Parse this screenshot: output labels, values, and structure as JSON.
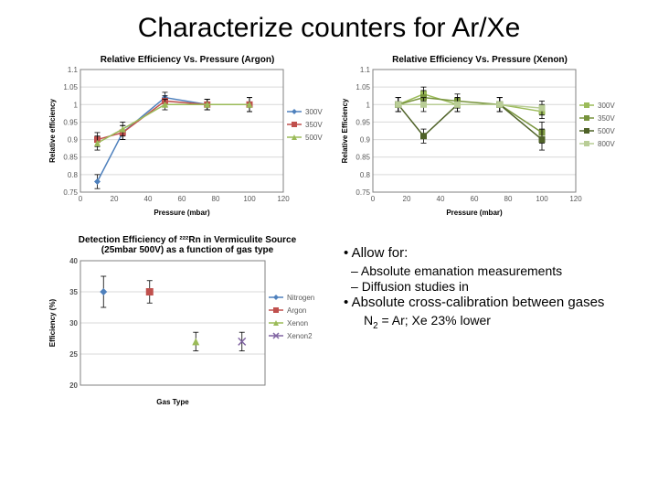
{
  "title": "Characterize counters for Ar/Xe",
  "chart_argon": {
    "title": "Relative Efficiency Vs. Pressure (Argon)",
    "xlabel": "Pressure (mbar)",
    "ylabel": "Relative efficiency",
    "xlim": [
      0,
      120
    ],
    "xtick_step": 20,
    "ylim": [
      0.75,
      1.1
    ],
    "yticks": [
      0.75,
      0.8,
      0.85,
      0.9,
      0.95,
      1.0,
      1.05,
      1.1
    ],
    "series_colors": {
      "300V": "#4f81bd",
      "350V": "#c0504d",
      "500V": "#9bbb59"
    },
    "marker_shape": {
      "300V": "diamond",
      "350V": "square",
      "500V": "triangle"
    },
    "series": {
      "300V": [
        {
          "x": 10,
          "y": 0.78,
          "e": 0.02
        },
        {
          "x": 25,
          "y": 0.92,
          "e": 0.02
        },
        {
          "x": 50,
          "y": 1.02,
          "e": 0.015
        },
        {
          "x": 75,
          "y": 1.0,
          "e": 0.015
        },
        {
          "x": 100,
          "y": 1.0,
          "e": 0.02
        }
      ],
      "350V": [
        {
          "x": 10,
          "y": 0.9,
          "e": 0.02
        },
        {
          "x": 25,
          "y": 0.92,
          "e": 0.02
        },
        {
          "x": 50,
          "y": 1.01,
          "e": 0.015
        },
        {
          "x": 75,
          "y": 1.0,
          "e": 0.015
        },
        {
          "x": 100,
          "y": 1.0,
          "e": 0.02
        }
      ],
      "500V": [
        {
          "x": 10,
          "y": 0.89,
          "e": 0.02
        },
        {
          "x": 25,
          "y": 0.93,
          "e": 0.02
        },
        {
          "x": 50,
          "y": 1.0,
          "e": 0.015
        },
        {
          "x": 75,
          "y": 1.0,
          "e": 0.015
        },
        {
          "x": 100,
          "y": 1.0,
          "e": 0.02
        }
      ]
    },
    "grid_color": "#d9d9d9",
    "axis_color": "#808080",
    "background": "#ffffff"
  },
  "chart_xenon": {
    "title": "Relative Efficiency Vs. Pressure (Xenon)",
    "xlabel": "Pressure (mbar)",
    "ylabel": "Relative Efficiency",
    "xlim": [
      0,
      120
    ],
    "xtick_step": 20,
    "ylim": [
      0.75,
      1.1
    ],
    "yticks": [
      0.75,
      0.8,
      0.85,
      0.9,
      0.95,
      1.0,
      1.05,
      1.1
    ],
    "series_colors": {
      "300V": "#9bbb59",
      "350V": "#77933c",
      "500V": "#4f6228",
      "800V": "#b9cd96"
    },
    "marker_shape": {
      "300V": "square",
      "350V": "square",
      "500V": "square",
      "800V": "square"
    },
    "series": {
      "300V": [
        {
          "x": 15,
          "y": 1.0,
          "e": 0.02
        },
        {
          "x": 30,
          "y": 1.03,
          "e": 0.02
        },
        {
          "x": 50,
          "y": 1.0,
          "e": 0.02
        },
        {
          "x": 75,
          "y": 1.0,
          "e": 0.02
        },
        {
          "x": 100,
          "y": 0.98,
          "e": 0.02
        }
      ],
      "350V": [
        {
          "x": 15,
          "y": 1.0,
          "e": 0.02
        },
        {
          "x": 30,
          "y": 1.02,
          "e": 0.02
        },
        {
          "x": 50,
          "y": 1.01,
          "e": 0.02
        },
        {
          "x": 75,
          "y": 1.0,
          "e": 0.02
        },
        {
          "x": 100,
          "y": 0.92,
          "e": 0.03
        }
      ],
      "500V": [
        {
          "x": 15,
          "y": 1.0,
          "e": 0.02
        },
        {
          "x": 30,
          "y": 0.91,
          "e": 0.02
        },
        {
          "x": 50,
          "y": 1.0,
          "e": 0.02
        },
        {
          "x": 75,
          "y": 1.0,
          "e": 0.02
        },
        {
          "x": 100,
          "y": 0.9,
          "e": 0.03
        }
      ],
      "800V": [
        {
          "x": 15,
          "y": 1.0,
          "e": 0.02
        },
        {
          "x": 30,
          "y": 1.0,
          "e": 0.02
        },
        {
          "x": 50,
          "y": 1.0,
          "e": 0.02
        },
        {
          "x": 75,
          "y": 1.0,
          "e": 0.02
        },
        {
          "x": 100,
          "y": 0.99,
          "e": 0.02
        }
      ]
    },
    "grid_color": "#d9d9d9",
    "axis_color": "#808080",
    "background": "#ffffff"
  },
  "chart_gastype": {
    "title_l1": "Detection Efficiency of ²²²Rn in Vermiculite Source",
    "title_l2": "(25mbar 500V) as a function of gas type",
    "xlabel": "Gas Type",
    "ylabel": "Efficiency (%)",
    "ylim": [
      20,
      40
    ],
    "yticks": [
      20,
      25,
      30,
      35,
      40
    ],
    "categories": [
      "Nitrogen",
      "Argon",
      "Xenon",
      "Xenon2"
    ],
    "colors": {
      "Nitrogen": "#4f81bd",
      "Argon": "#c0504d",
      "Xenon": "#9bbb59",
      "Xenon2": "#8064a2"
    },
    "marker_shape": {
      "Nitrogen": "diamond",
      "Argon": "square",
      "Xenon": "triangle",
      "Xenon2": "cross"
    },
    "points": {
      "Nitrogen": {
        "y": 35,
        "e": 2.5
      },
      "Argon": {
        "y": 35,
        "e": 1.8
      },
      "Xenon": {
        "y": 27,
        "e": 1.5
      },
      "Xenon2": {
        "y": 27,
        "e": 1.5
      }
    },
    "grid_color": "#d9d9d9",
    "axis_color": "#808080",
    "background": "#ffffff"
  },
  "bullets": {
    "b1": "Allow for:",
    "s1": "Absolute emanation measurements",
    "s2": "Diffusion studies in",
    "b2": "Absolute cross-calibration between gases",
    "note_pre": "N",
    "note_sub": "2",
    "note_post": " = Ar; Xe 23% lower"
  }
}
